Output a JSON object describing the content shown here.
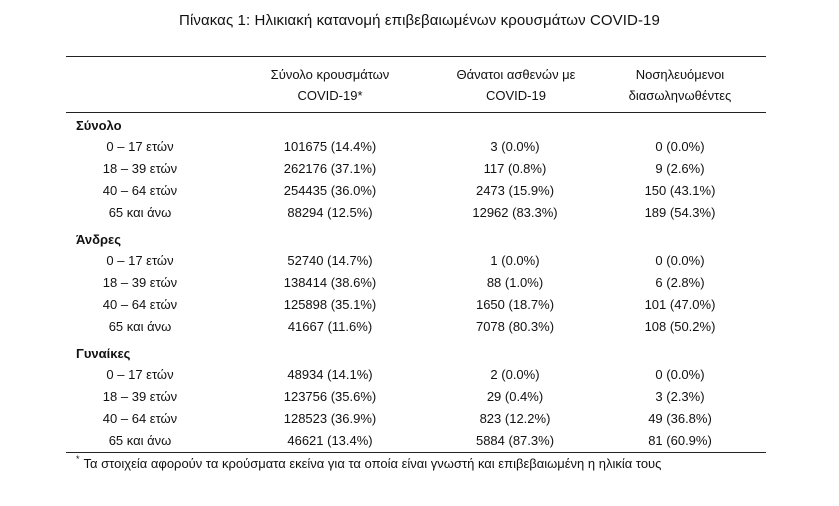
{
  "title": "Πίνακας 1: Ηλικιακή κατανομή επιβεβαιωμένων κρουσμάτων COVID-19",
  "headers": {
    "col1": [
      "Σύνολο κρουσμάτων",
      "COVID-19*"
    ],
    "col2": [
      "Θάνατοι ασθενών με",
      "COVID-19"
    ],
    "col3": [
      "Νοσηλευόμενοι",
      "διασωληνωθέντες"
    ]
  },
  "groups": [
    {
      "name": "Σύνολο",
      "rows": [
        {
          "age": "0 – 17 ετών",
          "cases": "101675 (14.4%)",
          "deaths": "3 (0.0%)",
          "intubated": "0 (0.0%)"
        },
        {
          "age": "18 – 39 ετών",
          "cases": "262176 (37.1%)",
          "deaths": "117 (0.8%)",
          "intubated": "9 (2.6%)"
        },
        {
          "age": "40 – 64 ετών",
          "cases": "254435 (36.0%)",
          "deaths": "2473 (15.9%)",
          "intubated": "150 (43.1%)"
        },
        {
          "age": "65 και άνω",
          "cases": "88294 (12.5%)",
          "deaths": "12962 (83.3%)",
          "intubated": "189 (54.3%)"
        }
      ]
    },
    {
      "name": "Άνδρες",
      "rows": [
        {
          "age": "0 – 17 ετών",
          "cases": "52740 (14.7%)",
          "deaths": "1 (0.0%)",
          "intubated": "0 (0.0%)"
        },
        {
          "age": "18 – 39 ετών",
          "cases": "138414 (38.6%)",
          "deaths": "88 (1.0%)",
          "intubated": "6 (2.8%)"
        },
        {
          "age": "40 – 64 ετών",
          "cases": "125898 (35.1%)",
          "deaths": "1650 (18.7%)",
          "intubated": "101 (47.0%)"
        },
        {
          "age": "65 και άνω",
          "cases": "41667 (11.6%)",
          "deaths": "7078 (80.3%)",
          "intubated": "108 (50.2%)"
        }
      ]
    },
    {
      "name": "Γυναίκες",
      "rows": [
        {
          "age": "0 – 17 ετών",
          "cases": "48934 (14.1%)",
          "deaths": "2 (0.0%)",
          "intubated": "0 (0.0%)"
        },
        {
          "age": "18 – 39 ετών",
          "cases": "123756 (35.6%)",
          "deaths": "29 (0.4%)",
          "intubated": "3 (2.3%)"
        },
        {
          "age": "40 – 64 ετών",
          "cases": "128523 (36.9%)",
          "deaths": "823 (12.2%)",
          "intubated": "49 (36.8%)"
        },
        {
          "age": "65 και άνω",
          "cases": "46621 (13.4%)",
          "deaths": "5884 (87.3%)",
          "intubated": "81 (60.9%)"
        }
      ]
    }
  ],
  "footnote": {
    "mark": "*",
    "text": "Τα στοιχεία αφορούν τα κρούσματα εκείνα για τα οποία είναι γνωστή και επιβεβαιωμένη η ηλικία τους"
  }
}
